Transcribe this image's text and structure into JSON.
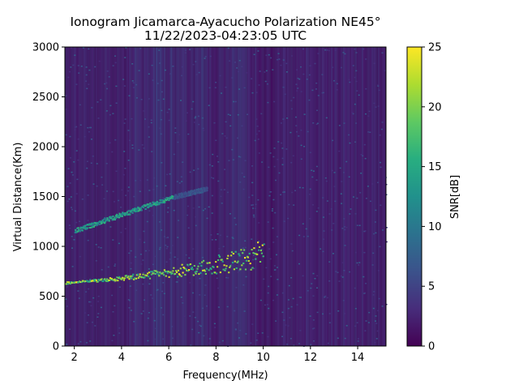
{
  "chart_data": {
    "type": "heatmap",
    "title_line1": "Ionogram Jicamarca-Ayacucho Polarization NE45°",
    "title_line2": "11/22/2023-04:23:05 UTC",
    "xlabel": "Frequency(MHz)",
    "ylabel": "Virtual Distance(Km)",
    "xlim": [
      1.6,
      15.2
    ],
    "ylim": [
      0,
      3000
    ],
    "x_ticks": [
      2,
      4,
      6,
      8,
      10,
      12,
      14
    ],
    "x_tick_labels": [
      "2",
      "4",
      "6",
      "8",
      "10",
      "12",
      "14"
    ],
    "y_ticks": [
      0,
      500,
      1000,
      1500,
      2000,
      2500,
      3000
    ],
    "y_tick_labels": [
      "0",
      "500",
      "1000",
      "1500",
      "2000",
      "2500",
      "3000"
    ],
    "grid": false,
    "colorbar": {
      "label": "SNR[dB]",
      "range": [
        0,
        25
      ],
      "ticks": [
        0,
        5,
        10,
        15,
        20,
        25
      ],
      "tick_labels": [
        "0",
        "5",
        "10",
        "15",
        "20",
        "25"
      ],
      "colormap": "viridis"
    },
    "traces": [
      {
        "x_start": 1.6,
        "x_end": 10.0,
        "y_start": 630,
        "y_end": 760,
        "upper_y_end": 1050,
        "peak_snr": 25
      },
      {
        "x_start": 2.0,
        "x_end": 6.2,
        "y_start": 1140,
        "y_end": 1480,
        "peak_snr": 17
      },
      {
        "x_start": 6.2,
        "x_end": 7.6,
        "y_start": 1480,
        "y_end": 1560,
        "peak_snr": 8
      }
    ]
  }
}
